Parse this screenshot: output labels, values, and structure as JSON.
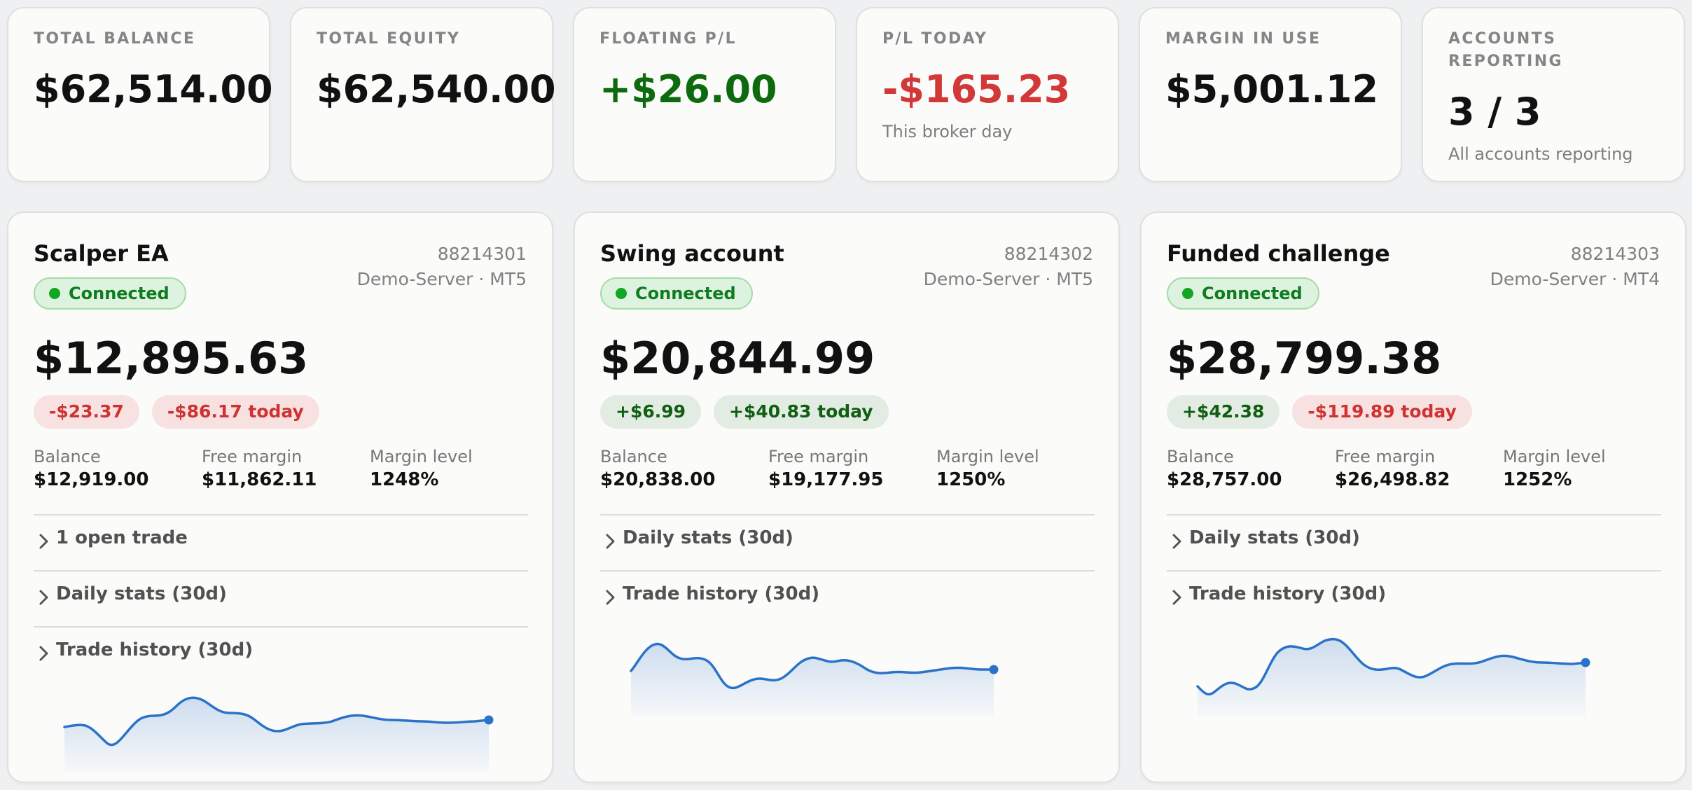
{
  "summary": [
    {
      "label": "TOTAL BALANCE",
      "value": "$62,514.00",
      "tone": "neutral",
      "sub": ""
    },
    {
      "label": "TOTAL EQUITY",
      "value": "$62,540.00",
      "tone": "neutral",
      "sub": ""
    },
    {
      "label": "FLOATING P/L",
      "value": "+$26.00",
      "tone": "positive",
      "sub": ""
    },
    {
      "label": "P/L TODAY",
      "value": "-$165.23",
      "tone": "negative",
      "sub": "This broker day"
    },
    {
      "label": "MARGIN IN USE",
      "value": "$5,001.12",
      "tone": "neutral",
      "sub": ""
    },
    {
      "label": "ACCOUNTS REPORTING",
      "value": "3 / 3",
      "tone": "neutral",
      "sub": "All accounts reporting"
    }
  ],
  "accounts": [
    {
      "name": "Scalper EA",
      "number": "88214301",
      "server": "Demo-Server · MT5",
      "status": "Connected",
      "equity": "$12,895.63",
      "floating": "-$23.37",
      "floating_tone": "negative",
      "today": "-$86.17 today",
      "today_tone": "negative",
      "balance_label": "Balance",
      "balance": "$12,919.00",
      "free_margin_label": "Free margin",
      "free_margin": "$11,862.11",
      "margin_level_label": "Margin level",
      "margin_level": "1248%",
      "sections": [
        "1 open trade",
        "Daily stats (30d)",
        "Trade history (30d)"
      ]
    },
    {
      "name": "Swing account",
      "number": "88214302",
      "server": "Demo-Server · MT5",
      "status": "Connected",
      "equity": "$20,844.99",
      "floating": "+$6.99",
      "floating_tone": "positive",
      "today": "+$40.83 today",
      "today_tone": "positive",
      "balance_label": "Balance",
      "balance": "$20,838.00",
      "free_margin_label": "Free margin",
      "free_margin": "$19,177.95",
      "margin_level_label": "Margin level",
      "margin_level": "1250%",
      "sections": [
        "Daily stats (30d)",
        "Trade history (30d)"
      ]
    },
    {
      "name": "Funded challenge",
      "number": "88214303",
      "server": "Demo-Server · MT4",
      "status": "Connected",
      "equity": "$28,799.38",
      "floating": "+$42.38",
      "floating_tone": "positive",
      "today": "-$119.89 today",
      "today_tone": "negative",
      "balance_label": "Balance",
      "balance": "$28,757.00",
      "free_margin_label": "Free margin",
      "free_margin": "$26,498.82",
      "margin_level_label": "Margin level",
      "margin_level": "1252%",
      "sections": [
        "Daily stats (30d)",
        "Trade history (30d)"
      ]
    }
  ],
  "colors": {
    "accent": "#2b73c9",
    "positive": "#0d6b0d",
    "negative": "#d33838",
    "connected": "#13a524"
  },
  "icons": {
    "section_toggle": "chevron-right-icon",
    "status": "status-dot-icon"
  }
}
